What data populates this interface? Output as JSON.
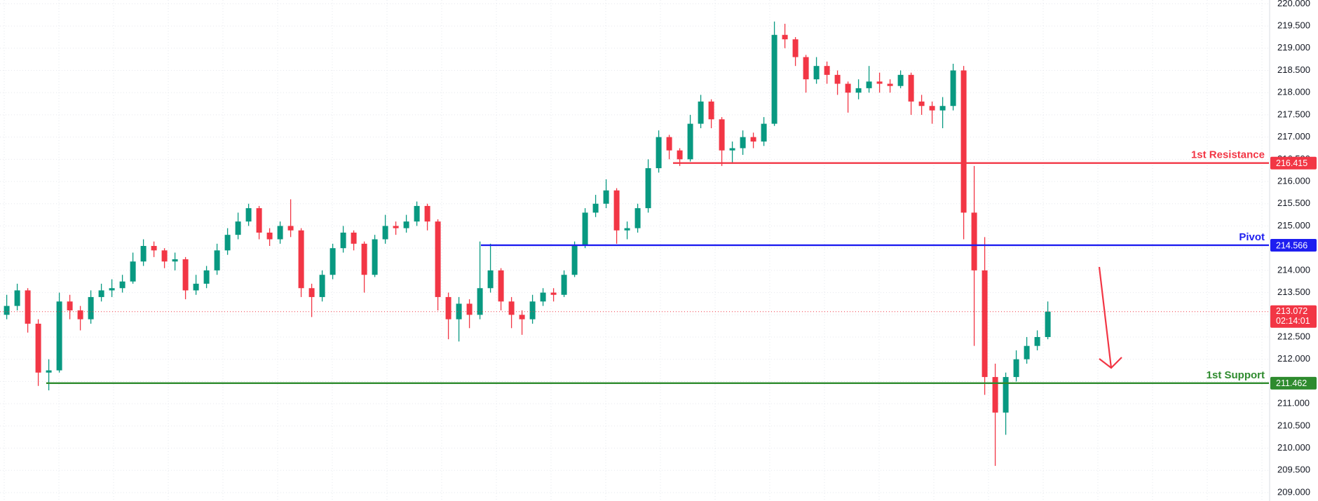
{
  "chart_data": {
    "type": "candlestick",
    "open": [
      213.0,
      213.2,
      213.55,
      212.8,
      211.7,
      211.75,
      213.3,
      213.1,
      212.9,
      213.4,
      213.55,
      213.6,
      213.75,
      214.2,
      214.55,
      214.45,
      214.2,
      214.25,
      213.55,
      213.7,
      214.0,
      214.45,
      214.8,
      215.1,
      215.4,
      214.85,
      214.7,
      215.0,
      214.9,
      213.6,
      213.4,
      213.9,
      214.5,
      214.85,
      214.6,
      213.9,
      214.7,
      215.0,
      214.95,
      215.1,
      215.45,
      215.1,
      213.4,
      212.9,
      213.25,
      213.0,
      213.6,
      214.0,
      213.3,
      213.0,
      212.9,
      213.3,
      213.5,
      213.45,
      213.9,
      214.55,
      215.3,
      215.5,
      215.8,
      214.9,
      214.95,
      215.4,
      216.3,
      217.0,
      216.7,
      216.5,
      217.3,
      217.8,
      217.4,
      216.7,
      216.75,
      217.0,
      216.9,
      217.3,
      219.3,
      219.2,
      218.8,
      218.3,
      218.6,
      218.4,
      218.2,
      218.0,
      218.1,
      218.25,
      218.2,
      218.15,
      218.4,
      217.8,
      217.7,
      217.6,
      217.7,
      218.5,
      215.3,
      214.0,
      211.6,
      210.8,
      211.6,
      212.0,
      212.3,
      212.5
    ],
    "high": [
      213.45,
      213.7,
      213.6,
      212.9,
      212.0,
      213.5,
      213.45,
      213.2,
      213.55,
      213.7,
      213.8,
      213.9,
      214.4,
      214.7,
      214.65,
      214.5,
      214.4,
      214.3,
      213.9,
      214.1,
      214.6,
      214.95,
      215.3,
      215.5,
      215.45,
      214.95,
      215.1,
      215.6,
      214.95,
      213.7,
      214.0,
      214.6,
      215.0,
      214.9,
      214.65,
      214.8,
      215.25,
      215.1,
      215.25,
      215.55,
      215.5,
      215.15,
      213.5,
      213.4,
      213.35,
      214.65,
      214.6,
      214.05,
      213.4,
      213.1,
      213.45,
      213.6,
      213.6,
      214.0,
      214.65,
      215.4,
      215.7,
      216.05,
      215.85,
      215.1,
      215.5,
      216.5,
      217.15,
      217.05,
      216.75,
      217.5,
      217.95,
      217.85,
      217.45,
      216.9,
      217.15,
      217.1,
      217.45,
      219.6,
      219.55,
      219.25,
      218.85,
      218.8,
      218.7,
      218.5,
      218.25,
      218.3,
      218.6,
      218.45,
      218.3,
      218.5,
      218.45,
      217.95,
      217.8,
      217.9,
      218.65,
      218.6,
      216.35,
      214.75,
      211.9,
      211.7,
      212.2,
      212.5,
      212.65,
      213.3
    ],
    "low": [
      212.9,
      213.1,
      212.6,
      211.4,
      211.3,
      211.7,
      212.9,
      212.65,
      212.8,
      213.3,
      213.4,
      213.5,
      213.7,
      214.1,
      214.3,
      214.05,
      214.0,
      213.35,
      213.45,
      213.6,
      213.9,
      214.35,
      214.7,
      215.0,
      214.7,
      214.55,
      214.6,
      214.75,
      213.4,
      212.95,
      213.3,
      213.8,
      214.4,
      214.45,
      213.5,
      213.85,
      214.6,
      214.8,
      214.85,
      215.0,
      214.9,
      213.1,
      212.45,
      212.4,
      212.7,
      212.9,
      213.5,
      213.1,
      212.7,
      212.55,
      212.8,
      213.2,
      213.3,
      213.4,
      213.85,
      214.5,
      215.2,
      215.4,
      214.6,
      214.7,
      214.85,
      215.3,
      216.2,
      216.5,
      216.35,
      216.45,
      217.2,
      217.2,
      216.35,
      216.4,
      216.6,
      216.75,
      216.8,
      217.25,
      219.0,
      218.6,
      218.0,
      218.2,
      218.2,
      217.95,
      217.55,
      217.85,
      218.0,
      218.0,
      218.0,
      218.1,
      217.5,
      217.5,
      217.3,
      217.2,
      217.6,
      214.7,
      212.3,
      211.2,
      209.6,
      210.3,
      211.5,
      211.9,
      212.2,
      212.45
    ],
    "close": [
      213.2,
      213.55,
      212.8,
      211.7,
      211.75,
      213.3,
      213.1,
      212.9,
      213.4,
      213.55,
      213.6,
      213.75,
      214.2,
      214.55,
      214.45,
      214.2,
      214.25,
      213.55,
      213.7,
      214.0,
      214.45,
      214.8,
      215.1,
      215.4,
      214.85,
      214.7,
      215.0,
      214.9,
      213.6,
      213.4,
      213.9,
      214.5,
      214.85,
      214.6,
      213.9,
      214.7,
      215.0,
      214.95,
      215.1,
      215.45,
      215.1,
      213.4,
      212.9,
      213.25,
      213.0,
      213.6,
      214.0,
      213.3,
      213.0,
      212.9,
      213.3,
      213.5,
      213.45,
      213.9,
      214.55,
      215.3,
      215.5,
      215.8,
      214.9,
      214.95,
      215.4,
      216.3,
      217.0,
      216.7,
      216.5,
      217.3,
      217.8,
      217.4,
      216.7,
      216.75,
      217.0,
      216.9,
      217.3,
      219.3,
      219.2,
      218.8,
      218.3,
      218.6,
      218.4,
      218.2,
      218.0,
      218.1,
      218.25,
      218.2,
      218.15,
      218.4,
      217.8,
      217.7,
      217.6,
      217.7,
      218.5,
      215.3,
      214.0,
      211.6,
      210.8,
      211.6,
      212.0,
      212.3,
      212.5,
      213.072
    ],
    "up_color": "#089981",
    "down_color": "#f23645",
    "ylim": [
      208.81,
      220.085
    ],
    "yticks": [
      {
        "value": 209,
        "label": "209.000"
      },
      {
        "value": 209.5,
        "label": "209.500"
      },
      {
        "value": 210,
        "label": "210.000"
      },
      {
        "value": 210.5,
        "label": "210.500"
      },
      {
        "value": 211,
        "label": "211.000"
      },
      {
        "value": 211.5,
        "label": "211.500"
      },
      {
        "value": 212,
        "label": "212.000"
      },
      {
        "value": 212.5,
        "label": "212.500"
      },
      {
        "value": 213,
        "label": "213.000"
      },
      {
        "value": 213.5,
        "label": "213.500"
      },
      {
        "value": 214,
        "label": "214.000"
      },
      {
        "value": 214.5,
        "label": "214.500"
      },
      {
        "value": 215,
        "label": "215.000"
      },
      {
        "value": 215.5,
        "label": "215.500"
      },
      {
        "value": 216,
        "label": "216.000"
      },
      {
        "value": 216.5,
        "label": "216.500"
      },
      {
        "value": 217,
        "label": "217.000"
      },
      {
        "value": 217.5,
        "label": "217.500"
      },
      {
        "value": 218,
        "label": "218.000"
      },
      {
        "value": 218.5,
        "label": "218.500"
      },
      {
        "value": 219,
        "label": "219.000"
      },
      {
        "value": 219.5,
        "label": "219.500"
      },
      {
        "value": 220,
        "label": "220.000"
      }
    ],
    "grid": true,
    "levels": [
      {
        "name": "1st Resistance",
        "value": 216.415,
        "color": "#f23645"
      },
      {
        "name": "Pivot",
        "value": 214.566,
        "color": "#1e1ef0"
      },
      {
        "name": "1st Support",
        "value": 211.462,
        "color": "#2e8b2e"
      }
    ],
    "last_price": {
      "value": 213.072,
      "countdown": "02:14:01",
      "color": "#f23645"
    }
  }
}
